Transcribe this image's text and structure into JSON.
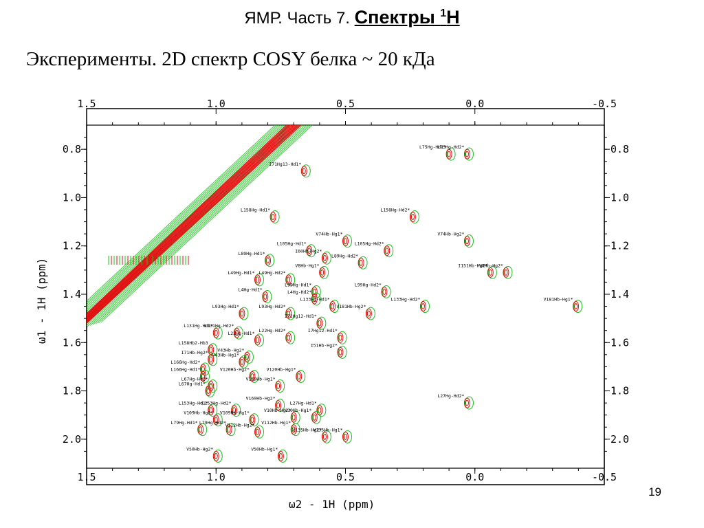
{
  "slide": {
    "title_plain": "ЯМР. Часть 7.",
    "title_strong": "Спектры ",
    "title_sup": "1",
    "title_end": "H",
    "subtitle": "Эксперименты. 2D спектр COSY белка ~ 20 кДа",
    "page_number": "19"
  },
  "colors": {
    "positive": "#e01010",
    "negative": "#18c018"
  },
  "chart_data": {
    "type": "scatter",
    "title": "",
    "xlabel": "ω2 - 1H (ppm)",
    "ylabel": "ω1 - 1H (ppm)",
    "xlim": [
      1.5,
      -0.5
    ],
    "ylim": [
      0.7,
      2.12
    ],
    "xticks": [
      "1.5",
      "1.0",
      "0.5",
      "0.0",
      "-0.5"
    ],
    "yticks": [
      "0.8",
      "1.0",
      "1.2",
      "1.4",
      "1.6",
      "1.8",
      "2.0"
    ],
    "grid": false,
    "peaks": [
      {
        "label": "L75Hg-Hd1*",
        "x": 0.1,
        "y": 0.82
      },
      {
        "label": "L75Hg-Hd2*",
        "x": 0.03,
        "y": 0.82
      },
      {
        "label": "I71Hg13-Hd1*",
        "x": 0.66,
        "y": 0.89
      },
      {
        "label": "L158Hg-Hd1*",
        "x": 0.78,
        "y": 1.08
      },
      {
        "label": "L158Hg-Hd2*",
        "x": 0.24,
        "y": 1.08
      },
      {
        "label": "V74Hb-Hg1*",
        "x": 0.5,
        "y": 1.18
      },
      {
        "label": "V74Hb-Hg2*",
        "x": 0.03,
        "y": 1.18
      },
      {
        "label": "L105Hg-Hd1*",
        "x": 0.64,
        "y": 1.22
      },
      {
        "label": "L105Hg-Hd2*",
        "x": 0.34,
        "y": 1.22
      },
      {
        "label": "I60Hb-Hg2*",
        "x": 0.58,
        "y": 1.25
      },
      {
        "label": "L89Hg-Hd1*",
        "x": 0.8,
        "y": 1.26
      },
      {
        "label": "L89Hg-Hd2*",
        "x": 0.44,
        "y": 1.27
      },
      {
        "label": "V8Hb-Hg1*",
        "x": 0.59,
        "y": 1.31
      },
      {
        "label": "I151Hb-Hg2*",
        "x": -0.06,
        "y": 1.31
      },
      {
        "label": "V8Hb-Hg2*",
        "x": -0.12,
        "y": 1.31
      },
      {
        "label": "L49Hg-Hd1*",
        "x": 0.84,
        "y": 1.34
      },
      {
        "label": "L49Hg-Hd2*",
        "x": 0.72,
        "y": 1.34
      },
      {
        "label": "L99Hg-Hd1*",
        "x": 0.62,
        "y": 1.39
      },
      {
        "label": "L99Hg-Hd2*",
        "x": 0.35,
        "y": 1.39
      },
      {
        "label": "L4Hg-Hd1*",
        "x": 0.81,
        "y": 1.41
      },
      {
        "label": "L4Hg-Hd2*",
        "x": 0.62,
        "y": 1.42
      },
      {
        "label": "L133Hg-Hd1*",
        "x": 0.55,
        "y": 1.45
      },
      {
        "label": "L133Hg-Hd2*",
        "x": 0.2,
        "y": 1.45
      },
      {
        "label": "V181Hb-Hg1*",
        "x": -0.39,
        "y": 1.45
      },
      {
        "label": "V181Hb-Hg2*",
        "x": 0.41,
        "y": 1.48
      },
      {
        "label": "L93Hg-Hd1*",
        "x": 0.9,
        "y": 1.48
      },
      {
        "label": "L93Hg-Hd2*",
        "x": 0.72,
        "y": 1.48
      },
      {
        "label": "I71Hg12-Hd1*",
        "x": 0.6,
        "y": 1.52
      },
      {
        "label": "L131Hg-Hd1*",
        "x": 1.0,
        "y": 1.56
      },
      {
        "label": "L131Hg-Hd2*",
        "x": 0.92,
        "y": 1.56
      },
      {
        "label": "L22Hg-Hd1*",
        "x": 0.84,
        "y": 1.59
      },
      {
        "label": "L22Hg-Hd2*",
        "x": 0.72,
        "y": 1.58
      },
      {
        "label": "I7Hg12-Hd1*",
        "x": 0.52,
        "y": 1.58
      },
      {
        "label": "L158Hb2-Hb3",
        "x": 1.02,
        "y": 1.63
      },
      {
        "label": "I51Hb-Hg2*",
        "x": 0.52,
        "y": 1.64
      },
      {
        "label": "I71Hb-Hg2*",
        "x": 1.02,
        "y": 1.67
      },
      {
        "label": "V43Hb-Hg2*",
        "x": 0.88,
        "y": 1.66
      },
      {
        "label": "V43Hb-Hg1*",
        "x": 0.9,
        "y": 1.68
      },
      {
        "label": "L166Hg-Hd2*",
        "x": 1.05,
        "y": 1.71
      },
      {
        "label": "L166Hg-Hd1*",
        "x": 1.05,
        "y": 1.74
      },
      {
        "label": "V120Hb-Hg2*",
        "x": 0.86,
        "y": 1.74
      },
      {
        "label": "V120Hb-Hg1*",
        "x": 0.68,
        "y": 1.74
      },
      {
        "label": "L67Hg-Hd2*",
        "x": 1.02,
        "y": 1.78
      },
      {
        "label": "V169Hb-Hg1*",
        "x": 0.76,
        "y": 1.78
      },
      {
        "label": "L67Hg-Hd1*",
        "x": 1.03,
        "y": 1.8
      },
      {
        "label": "L27Hg-Hd2*",
        "x": 0.03,
        "y": 1.85
      },
      {
        "label": "V169Hb-Hg2*",
        "x": 0.76,
        "y": 1.86
      },
      {
        "label": "L153Hg-Hd1*",
        "x": 1.02,
        "y": 1.88
      },
      {
        "label": "L153Hg-Hd2*",
        "x": 0.93,
        "y": 1.88
      },
      {
        "label": "L27Hg-Hd1*",
        "x": 0.6,
        "y": 1.88
      },
      {
        "label": "V109Hb-Hg2*",
        "x": 1.0,
        "y": 1.92
      },
      {
        "label": "V109Hb-Hg1*",
        "x": 0.86,
        "y": 1.92
      },
      {
        "label": "V10Hb-Hg2*",
        "x": 0.7,
        "y": 1.91
      },
      {
        "label": "V10Hb-Hg1*",
        "x": 0.62,
        "y": 1.91
      },
      {
        "label": "L79Hg-Hd1*",
        "x": 1.06,
        "y": 1.96
      },
      {
        "label": "L79Hg-Hd2*",
        "x": 0.95,
        "y": 1.96
      },
      {
        "label": "V112Hb-Hg2*",
        "x": 0.84,
        "y": 1.97
      },
      {
        "label": "V112Hb-Hg1*",
        "x": 0.7,
        "y": 1.96
      },
      {
        "label": "V135Hb-Hg2*",
        "x": 0.58,
        "y": 1.99
      },
      {
        "label": "V135Hb-Hg1*",
        "x": 0.5,
        "y": 1.99
      },
      {
        "label": "V50Hb-Hg2*",
        "x": 1.0,
        "y": 2.07
      },
      {
        "label": "V50Hb-Hg1*",
        "x": 0.75,
        "y": 2.07
      }
    ]
  }
}
